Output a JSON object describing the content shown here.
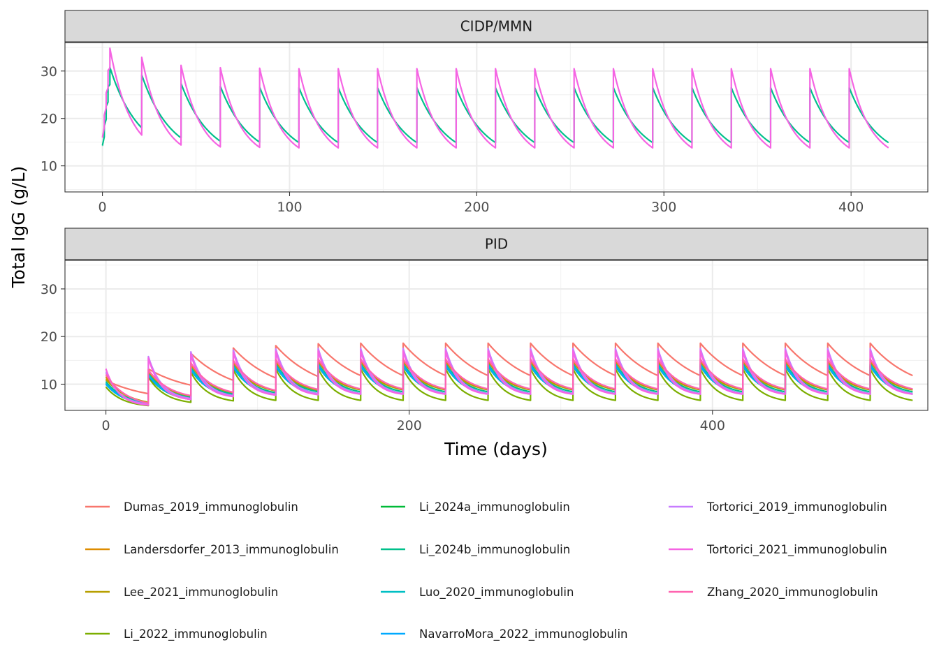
{
  "chart_data": {
    "type": "line",
    "xlabel": "Time (days)",
    "ylabel": "Total IgG (g/L)",
    "legend_position": "bottom",
    "grid": true,
    "colors": {
      "Dumas_2019_immunoglobulin": "#F8766D",
      "Landersdorfer_2013_immunoglobulin": "#DE8C00",
      "Lee_2021_immunoglobulin": "#B79F00",
      "Li_2022_immunoglobulin": "#7CAE00",
      "Li_2024a_immunoglobulin": "#00BA38",
      "Li_2024b_immunoglobulin": "#00C08B",
      "Luo_2020_immunoglobulin": "#00BFC4",
      "NavarroMora_2022_immunoglobulin": "#00A9FF",
      "Tortorici_2019_immunoglobulin": "#C77CFF",
      "Tortorici_2021_immunoglobulin": "#F564E3",
      "Zhang_2020_immunoglobulin": "#FF64B0"
    },
    "legend": [
      "Dumas_2019_immunoglobulin",
      "Landersdorfer_2013_immunoglobulin",
      "Lee_2021_immunoglobulin",
      "Li_2022_immunoglobulin",
      "Li_2024a_immunoglobulin",
      "Li_2024b_immunoglobulin",
      "Luo_2020_immunoglobulin",
      "NavarroMora_2022_immunoglobulin",
      "Tortorici_2019_immunoglobulin",
      "Tortorici_2021_immunoglobulin",
      "Zhang_2020_immunoglobulin"
    ],
    "panels": [
      {
        "title": "CIDP/MMN",
        "xlim": [
          -20,
          441
        ],
        "ylim": [
          4.5,
          36
        ],
        "x_ticks": [
          0,
          100,
          200,
          300,
          400
        ],
        "y_ticks": [
          10,
          20,
          30
        ],
        "loading_doses": [
          0,
          1,
          2,
          3,
          4
        ],
        "dose_interval": 21,
        "n_maintenance": 19,
        "end_time": 420,
        "series": [
          {
            "name": "Li_2024b_immunoglobulin",
            "start": 14.3,
            "first_peak": 30.8,
            "cycle_peaks": [
              29.2,
              27.4,
              26.8,
              26.6,
              26.5
            ],
            "cycle_troughs": [
              18.0,
              15.9,
              15.2,
              15.0,
              14.9
            ],
            "decay": 0.065
          },
          {
            "name": "Tortorici_2021_immunoglobulin",
            "start": 16.0,
            "first_peak": 34.8,
            "cycle_peaks": [
              32.9,
              31.2,
              30.7,
              30.6,
              30.5
            ],
            "cycle_troughs": [
              16.5,
              14.4,
              14.0,
              13.9,
              13.8
            ],
            "decay": 0.09
          }
        ]
      },
      {
        "title": "PID",
        "xlim": [
          -27,
          542
        ],
        "ylim": [
          4.5,
          36
        ],
        "x_ticks": [
          0,
          200,
          400
        ],
        "y_ticks": [
          10,
          20,
          30
        ],
        "loading_doses": [
          0
        ],
        "dose_interval": 28,
        "n_maintenance": 18,
        "end_time": 532,
        "series": [
          {
            "name": "Dumas_2019_immunoglobulin",
            "start": 10.8,
            "first_peak": 10.8,
            "cycle_peaks": [
              13.2,
              16.5,
              17.6,
              18.1,
              18.5,
              18.6
            ],
            "cycle_troughs": [
              8.0,
              9.8,
              10.8,
              11.3,
              11.6,
              11.8
            ],
            "decay": 0.035
          },
          {
            "name": "Landersdorfer_2013_immunoglobulin",
            "start": 11.5,
            "first_peak": 11.5,
            "cycle_peaks": [
              12.5,
              14.0,
              14.5,
              14.7,
              14.8,
              14.8
            ],
            "cycle_troughs": [
              6.0,
              7.3,
              8.2,
              8.6,
              8.8,
              8.9
            ],
            "decay": 0.07
          },
          {
            "name": "Lee_2021_immunoglobulin",
            "start": 11.0,
            "first_peak": 11.0,
            "cycle_peaks": [
              12.0,
              13.2,
              13.7,
              13.9,
              14.0,
              14.0
            ],
            "cycle_troughs": [
              6.2,
              7.4,
              8.2,
              8.6,
              8.7,
              8.8
            ],
            "decay": 0.065
          },
          {
            "name": "Li_2022_immunoglobulin",
            "start": 9.4,
            "first_peak": 9.4,
            "cycle_peaks": [
              11.5,
              12.5,
              13.0,
              13.2,
              13.2,
              13.2
            ],
            "cycle_troughs": [
              5.5,
              6.2,
              6.5,
              6.6,
              6.6,
              6.6
            ],
            "decay": 0.09
          },
          {
            "name": "Li_2024a_immunoglobulin",
            "start": 10.0,
            "first_peak": 10.0,
            "cycle_peaks": [
              11.8,
              13.0,
              13.5,
              13.7,
              13.8,
              13.8
            ],
            "cycle_troughs": [
              5.8,
              6.8,
              7.5,
              7.8,
              7.9,
              8.0
            ],
            "decay": 0.08
          },
          {
            "name": "Li_2024b_immunoglobulin",
            "start": 10.5,
            "first_peak": 10.5,
            "cycle_peaks": [
              12.2,
              13.5,
              14.0,
              14.2,
              14.3,
              14.3
            ],
            "cycle_troughs": [
              6.0,
              7.2,
              7.9,
              8.2,
              8.4,
              8.4
            ],
            "decay": 0.075
          },
          {
            "name": "Luo_2020_immunoglobulin",
            "start": 10.2,
            "first_peak": 10.2,
            "cycle_peaks": [
              12.0,
              13.3,
              13.8,
              14.0,
              14.1,
              14.1
            ],
            "cycle_troughs": [
              5.9,
              7.0,
              7.6,
              7.9,
              8.0,
              8.0
            ],
            "decay": 0.075
          },
          {
            "name": "NavarroMora_2022_immunoglobulin",
            "start": 10.0,
            "first_peak": 10.0,
            "cycle_peaks": [
              11.9,
              13.1,
              13.6,
              13.8,
              13.9,
              13.9
            ],
            "cycle_troughs": [
              5.8,
              6.8,
              7.4,
              7.7,
              7.8,
              7.9
            ],
            "decay": 0.078
          },
          {
            "name": "Tortorici_2019_immunoglobulin",
            "start": 12.5,
            "first_peak": 12.5,
            "cycle_peaks": [
              15.8,
              16.8,
              17.2,
              17.4,
              17.5,
              17.5
            ],
            "cycle_troughs": [
              5.8,
              7.0,
              7.6,
              7.9,
              8.0,
              8.0
            ],
            "decay": 0.11
          },
          {
            "name": "Tortorici_2021_immunoglobulin",
            "start": 13.2,
            "first_peak": 13.2,
            "cycle_peaks": [
              15.5,
              16.3,
              16.7,
              16.9,
              17.0,
              17.0
            ],
            "cycle_troughs": [
              5.6,
              6.8,
              7.4,
              7.7,
              7.8,
              7.9
            ],
            "decay": 0.12
          },
          {
            "name": "Zhang_2020_immunoglobulin",
            "start": 12.0,
            "first_peak": 12.0,
            "cycle_peaks": [
              13.0,
              14.5,
              15.0,
              15.2,
              15.3,
              15.3
            ],
            "cycle_troughs": [
              6.0,
              7.6,
              8.3,
              8.7,
              8.9,
              9.0
            ],
            "decay": 0.07
          }
        ]
      }
    ]
  }
}
